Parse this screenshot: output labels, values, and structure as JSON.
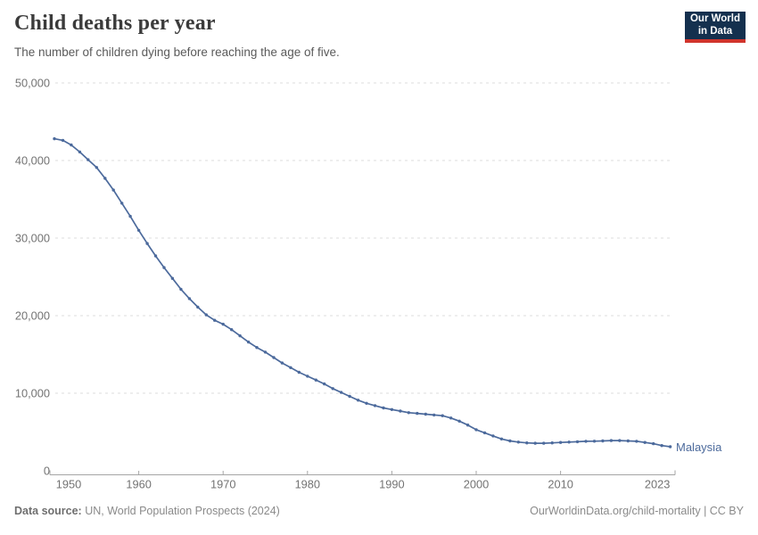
{
  "header": {
    "title": "Child deaths per year",
    "subtitle": "The number of children dying before reaching the age of five.",
    "logo": {
      "line1": "Our World",
      "line2": "in Data"
    }
  },
  "footer": {
    "source_label": "Data source:",
    "source_text": " UN, World Population Prospects (2024)",
    "link_text": "OurWorldinData.org/child-mortality | CC BY"
  },
  "entity_label": "Malaysia",
  "colors": {
    "series": "#4c6a9c",
    "gridline": "#dcdcdc",
    "axis": "#a5a5a5",
    "tick_text": "#737373",
    "logo_bg": "#14304e",
    "logo_red": "#d0342c"
  },
  "chart_data": {
    "type": "line",
    "title": "Child deaths per year",
    "xlabel": "",
    "ylabel": "",
    "xlim": [
      1950,
      2023
    ],
    "ylim": [
      0,
      50000
    ],
    "grid": "horizontal-dashed",
    "legend_position": "end-of-line-label",
    "xticks": [
      1950,
      1960,
      1970,
      1980,
      1990,
      2000,
      2010,
      2023
    ],
    "yticks": [
      0,
      10000,
      20000,
      30000,
      40000,
      50000
    ],
    "ytick_labels": [
      "0",
      "10,000",
      "20,000",
      "30,000",
      "40,000",
      "50,000"
    ],
    "series": [
      {
        "name": "Malaysia",
        "color": "#4c6a9c",
        "x": [
          1950,
          1951,
          1952,
          1953,
          1954,
          1955,
          1956,
          1957,
          1958,
          1959,
          1960,
          1961,
          1962,
          1963,
          1964,
          1965,
          1966,
          1967,
          1968,
          1969,
          1970,
          1971,
          1972,
          1973,
          1974,
          1975,
          1976,
          1977,
          1978,
          1979,
          1980,
          1981,
          1982,
          1983,
          1984,
          1985,
          1986,
          1987,
          1988,
          1989,
          1990,
          1991,
          1992,
          1993,
          1994,
          1995,
          1996,
          1997,
          1998,
          1999,
          2000,
          2001,
          2002,
          2003,
          2004,
          2005,
          2006,
          2007,
          2008,
          2009,
          2010,
          2011,
          2012,
          2013,
          2014,
          2015,
          2016,
          2017,
          2018,
          2019,
          2020,
          2021,
          2022,
          2023
        ],
        "values": [
          42800,
          42600,
          42000,
          41100,
          40100,
          39100,
          37700,
          36200,
          34500,
          32800,
          31000,
          29300,
          27700,
          26200,
          24800,
          23400,
          22200,
          21100,
          20100,
          19400,
          18900,
          18200,
          17400,
          16600,
          15900,
          15300,
          14600,
          13900,
          13300,
          12700,
          12200,
          11700,
          11200,
          10600,
          10100,
          9600,
          9100,
          8700,
          8400,
          8100,
          7900,
          7700,
          7500,
          7400,
          7300,
          7200,
          7100,
          6800,
          6400,
          5900,
          5300,
          4900,
          4500,
          4100,
          3850,
          3700,
          3600,
          3550,
          3550,
          3600,
          3650,
          3700,
          3750,
          3800,
          3820,
          3850,
          3900,
          3900,
          3850,
          3800,
          3650,
          3500,
          3250,
          3100
        ]
      }
    ]
  }
}
